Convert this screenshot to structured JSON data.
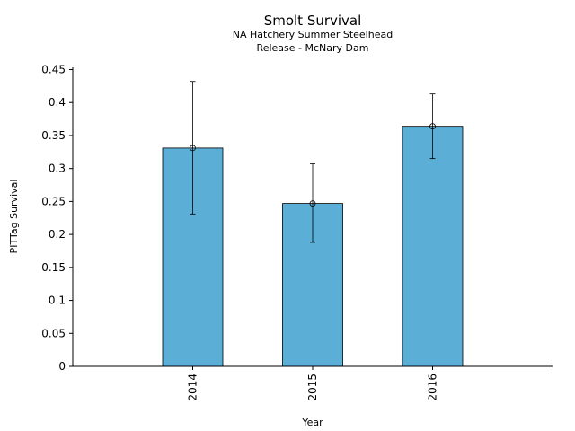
{
  "chart_data": {
    "type": "bar",
    "title": "Smolt Survival",
    "subtitle_lines": [
      "NA Hatchery Summer Steelhead",
      "Release - McNary Dam"
    ],
    "xlabel": "Year",
    "ylabel": "PITTag Survival",
    "categories": [
      "2014",
      "2015",
      "2016"
    ],
    "values": [
      0.331,
      0.247,
      0.364
    ],
    "error_low": [
      0.231,
      0.188,
      0.315
    ],
    "error_high": [
      0.432,
      0.307,
      0.413
    ],
    "ylim": [
      0,
      0.45
    ],
    "yticks": [
      "0",
      "0.05",
      "0.1",
      "0.15",
      "0.2",
      "0.25",
      "0.3",
      "0.35",
      "0.4",
      "0.45"
    ],
    "ytick_values": [
      0,
      0.05,
      0.1,
      0.15,
      0.2,
      0.25,
      0.3,
      0.35,
      0.4,
      0.45
    ],
    "grid": false,
    "legend": "none",
    "bar_color": "#5baed6",
    "edge_color": "#000000"
  }
}
